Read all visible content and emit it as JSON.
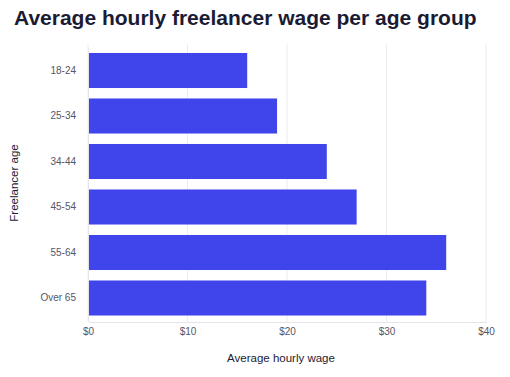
{
  "chart_data": {
    "type": "bar",
    "orientation": "horizontal",
    "title": "Average hourly freelancer wage per age group",
    "x_label": "Average hourly wage",
    "y_label": "Freelancer age",
    "categories": [
      "18-24",
      "25-34",
      "34-44",
      "45-54",
      "55-64",
      "Over 65"
    ],
    "values": [
      16,
      19,
      24,
      27,
      36,
      34
    ],
    "color": "#3f45ea",
    "xlim": [
      0,
      40
    ],
    "xticks": [
      {
        "value": 0,
        "label": "$0"
      },
      {
        "value": 10,
        "label": "$10"
      },
      {
        "value": 20,
        "label": "$20"
      },
      {
        "value": 30,
        "label": "$30"
      },
      {
        "value": 40,
        "label": "$40"
      }
    ],
    "grid": true
  }
}
